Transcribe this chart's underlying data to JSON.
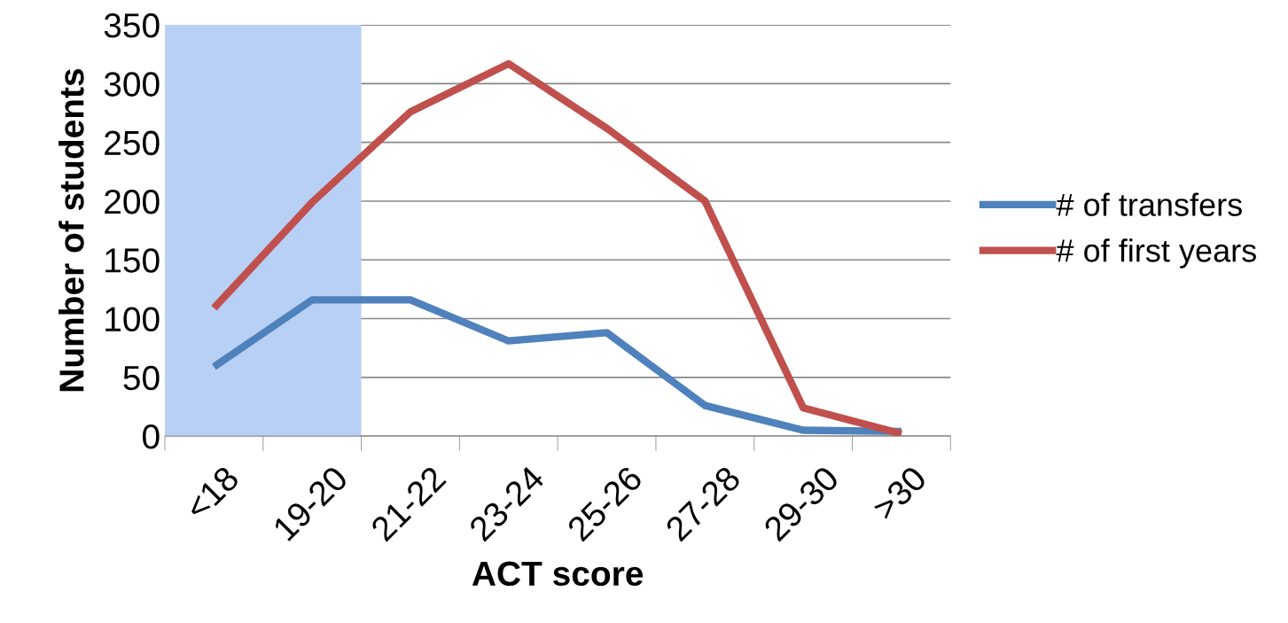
{
  "chart_data": {
    "type": "line",
    "xlabel": "ACT score",
    "ylabel": "Number of students",
    "categories": [
      "<18",
      "19-20",
      "21-22",
      "23-24",
      "25-26",
      "27-28",
      "29-30",
      ">30"
    ],
    "series": [
      {
        "name": "# of transfers",
        "color": "#4f81bd",
        "values": [
          59,
          116,
          116,
          81,
          88,
          26,
          5,
          4
        ]
      },
      {
        "name": "# of first years",
        "color": "#c0504d",
        "values": [
          109,
          199,
          276,
          317,
          262,
          200,
          24,
          2
        ]
      }
    ],
    "ylim": [
      0,
      350
    ],
    "yticks": [
      0,
      50,
      100,
      150,
      200,
      250,
      300,
      350
    ],
    "bands": [
      {
        "axis": "x",
        "from": "<18",
        "to": "19-20",
        "color": "#b8d0f6"
      }
    ],
    "grid": "y",
    "legend": "right",
    "marker": "none",
    "line_style": "solid"
  }
}
